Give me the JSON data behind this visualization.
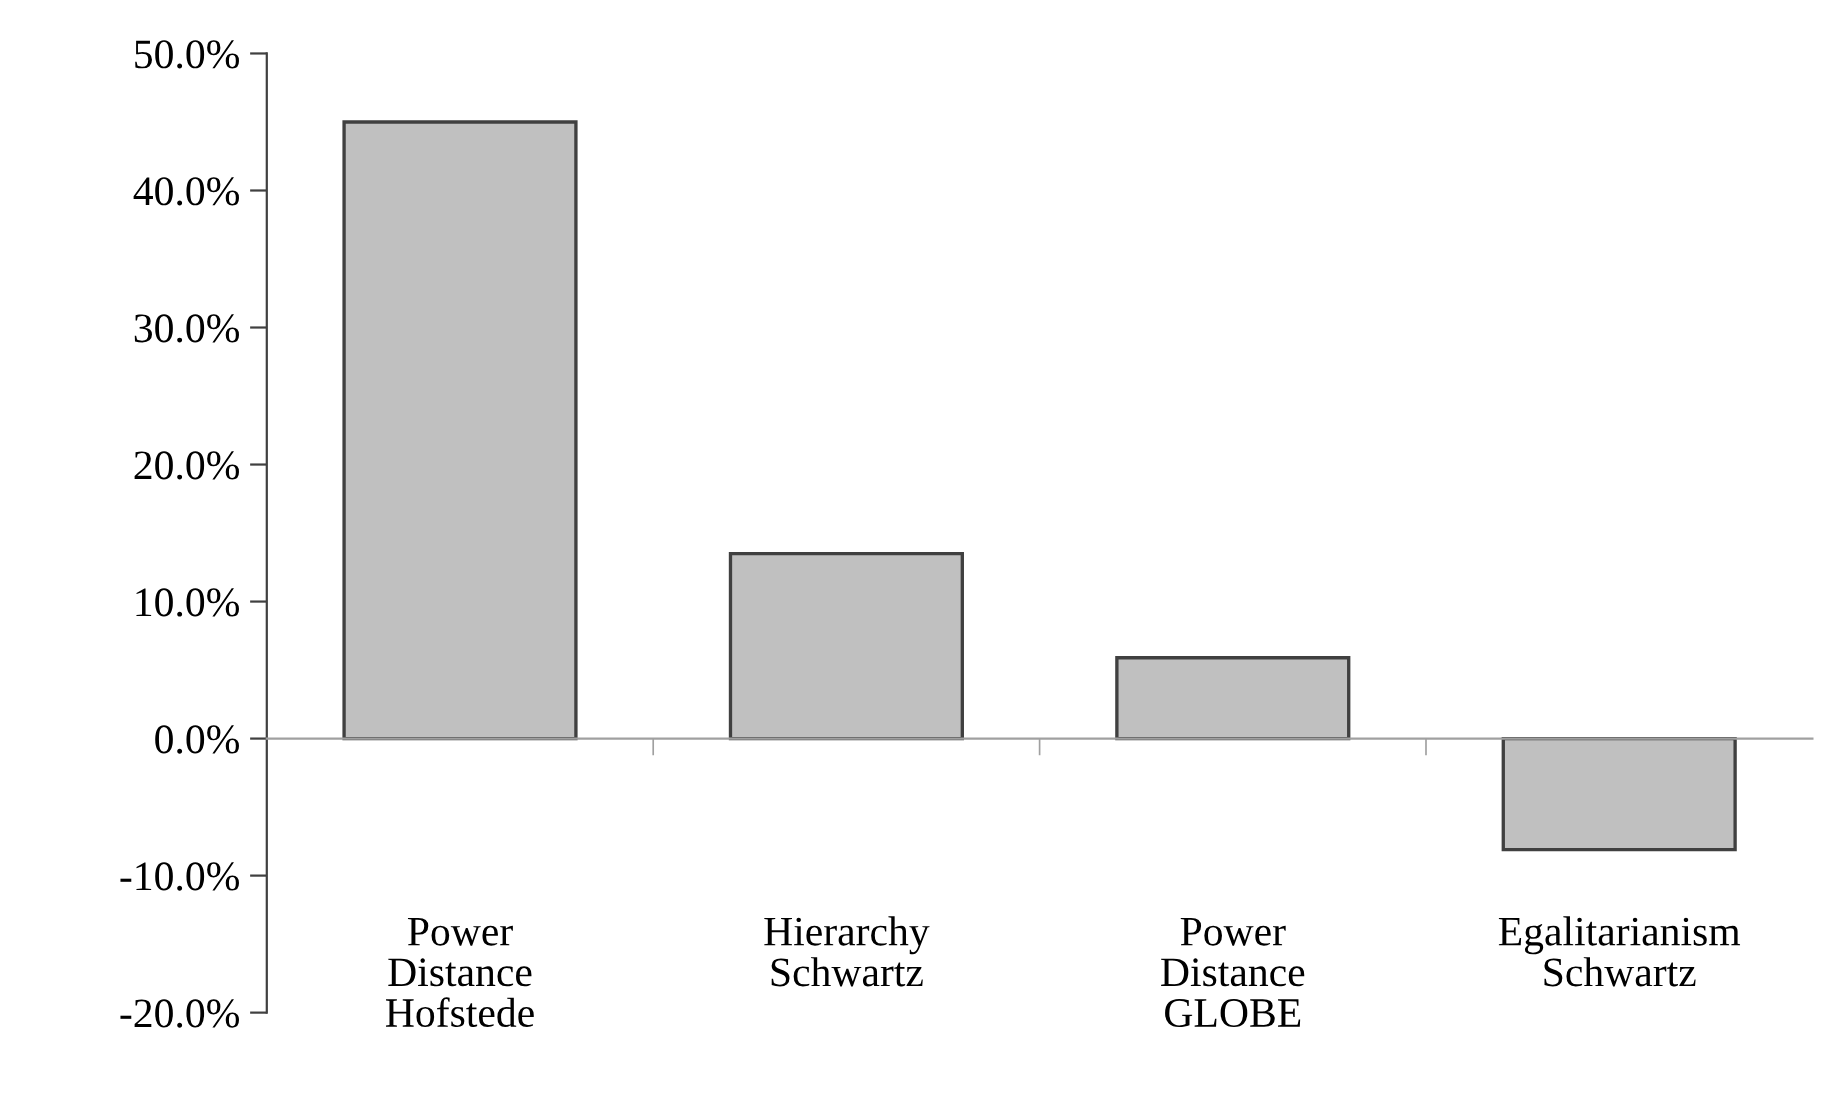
{
  "chart_data": {
    "type": "bar",
    "categories": [
      "Power\nDistance\nHofstede",
      "Hierarchy\nSchwartz",
      "Power\nDistance\nGLOBE",
      "Egalitarianism\nSchwartz"
    ],
    "values": [
      45.0,
      13.5,
      5.9,
      -8.1
    ],
    "color": "#c0c0c0",
    "ylim": [
      -20,
      50
    ],
    "yticks": [
      {
        "value": -20,
        "label": "-20.0%"
      },
      {
        "value": -10,
        "label": "-10.0%"
      },
      {
        "value": 0,
        "label": "0.0%"
      },
      {
        "value": 10,
        "label": "10.0%"
      },
      {
        "value": 20,
        "label": "20.0%"
      },
      {
        "value": 30,
        "label": "30.0%"
      },
      {
        "value": 40,
        "label": "40.0%"
      },
      {
        "value": 50,
        "label": "50.0%"
      }
    ],
    "legend": false
  }
}
